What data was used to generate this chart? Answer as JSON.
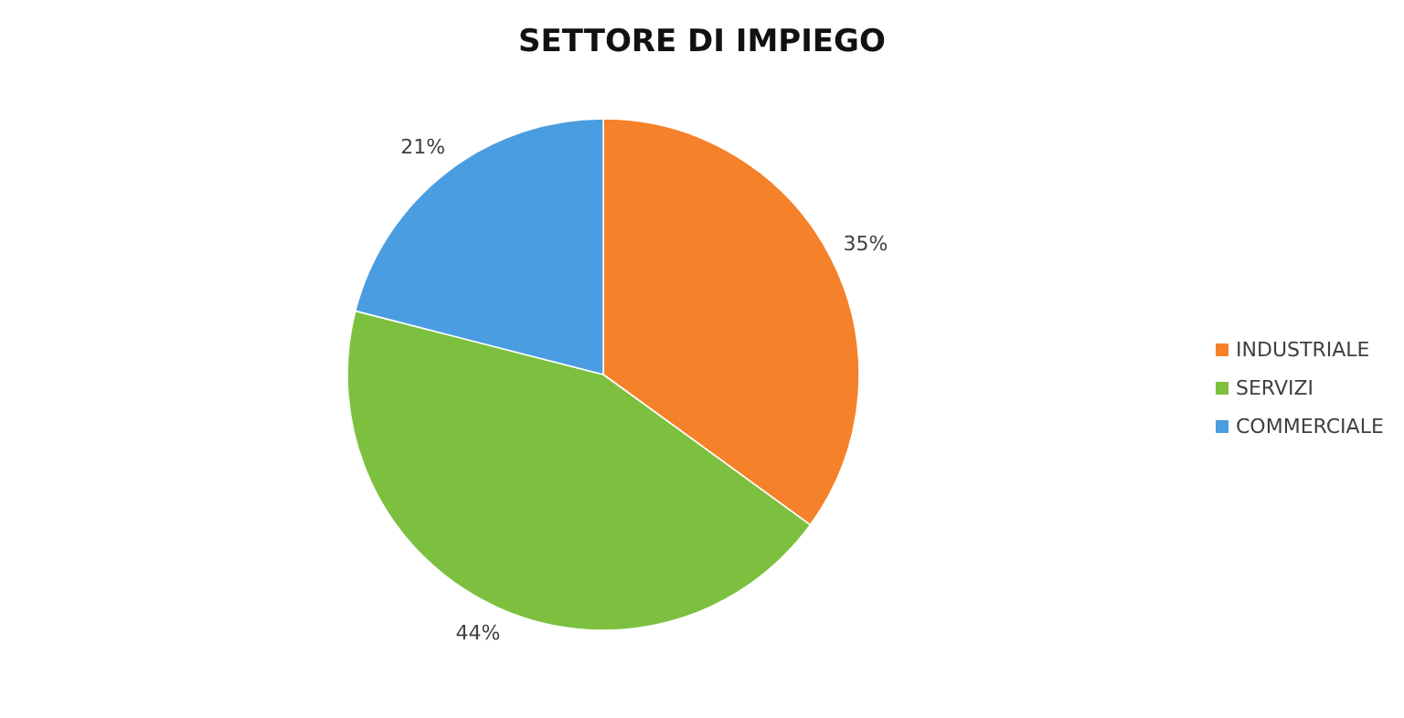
{
  "chart_data": {
    "type": "pie",
    "title": "SETTORE DI IMPIEGO",
    "categories": [
      "INDUSTRIALE",
      "SERVIZI",
      "COMMERCIALE"
    ],
    "values": [
      35,
      44,
      21
    ],
    "value_labels": [
      "35%",
      "44%",
      "21%"
    ],
    "colors": [
      "#f5822a",
      "#7dc040",
      "#4a9de0"
    ],
    "legend": "right"
  }
}
